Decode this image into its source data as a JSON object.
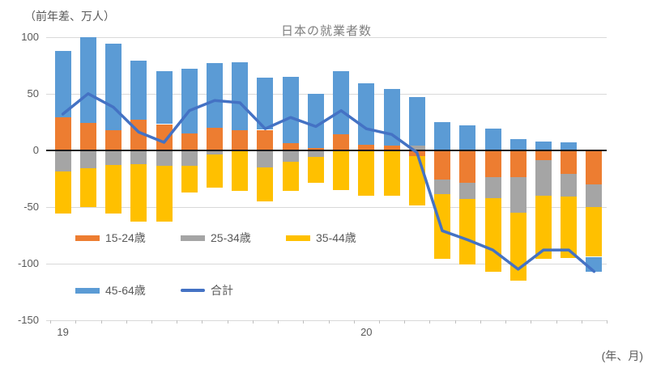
{
  "chart_data": {
    "type": "bar",
    "subtype": "stacked-bars-with-total-line",
    "title": "日本の就業者数",
    "y_axis_unit_label": "（前年差、万人）",
    "x_axis_unit_label": "(年、月)",
    "grid": true,
    "legend_position": "inside-bottom-left",
    "ylim": [
      -150,
      100
    ],
    "yticks": [
      100,
      50,
      0,
      -50,
      -100,
      -150
    ],
    "x_year_labels": [
      {
        "category_index": 0,
        "label": "19"
      },
      {
        "category_index": 12,
        "label": "20"
      }
    ],
    "categories": [
      "19/1",
      "19/2",
      "19/3",
      "19/4",
      "19/5",
      "19/6",
      "19/7",
      "19/8",
      "19/9",
      "19/10",
      "19/11",
      "19/12",
      "20/1",
      "20/2",
      "20/3",
      "20/4",
      "20/5",
      "20/6",
      "20/7",
      "20/8",
      "20/9",
      "20/10"
    ],
    "bar_series": [
      {
        "name": "15-24歳",
        "color": "#ED7D31",
        "values": [
          29,
          24,
          18,
          27,
          23,
          15,
          20,
          18,
          18,
          6,
          2,
          14,
          5,
          4,
          -5,
          -26,
          -29,
          -24,
          -24,
          -9,
          -21,
          -30
        ]
      },
      {
        "name": "25-34歳",
        "color": "#A5A5A5",
        "values": [
          -19,
          -16,
          -13,
          -12,
          -14,
          -14,
          -4,
          0,
          -15,
          -10,
          -6,
          0,
          0,
          0,
          4,
          -13,
          -14,
          -18,
          -31,
          -31,
          -20,
          -20
        ]
      },
      {
        "name": "35-44歳",
        "color": "#FFC000",
        "values": [
          -37,
          -34,
          -43,
          -51,
          -49,
          -23,
          -29,
          -36,
          -30,
          -26,
          -23,
          -35,
          -40,
          -40,
          -44,
          -57,
          -58,
          -65,
          -60,
          -56,
          -54,
          -44
        ]
      },
      {
        "name": "45-64歳",
        "color": "#5B9BD5",
        "values": [
          59,
          76,
          76,
          52,
          47,
          57,
          57,
          60,
          46,
          59,
          48,
          56,
          54,
          50,
          43,
          25,
          22,
          19,
          10,
          8,
          7,
          -13
        ]
      }
    ],
    "line_series": {
      "name": "合計",
      "color": "#4472C4",
      "values": [
        32,
        50,
        38,
        16,
        7,
        35,
        44,
        42,
        19,
        29,
        21,
        35,
        19,
        14,
        -2,
        -71,
        -79,
        -88,
        -105,
        -88,
        -88,
        -107
      ]
    }
  },
  "colors": {
    "gridline": "#D9D9D9",
    "zero_line": "#1A1A1A",
    "axis_text": "#595959",
    "title_text": "#7F7F7F",
    "tick_mark": "#BFBFBF",
    "background": "#FFFFFF"
  }
}
